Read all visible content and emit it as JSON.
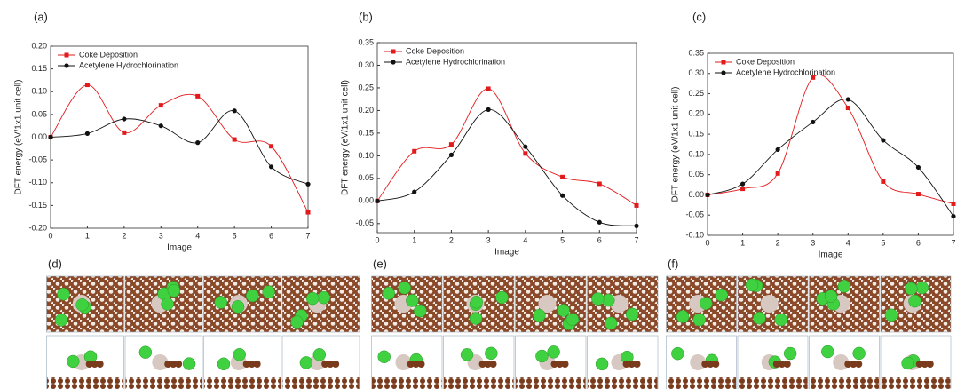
{
  "chart_data": [
    {
      "type": "line",
      "panel_label": "(a)",
      "x_label": "Image",
      "y_label": "DFT energy (eV/1x1 unit cell)",
      "x": [
        0,
        1,
        2,
        3,
        4,
        5,
        6,
        7
      ],
      "xlim": [
        0,
        7
      ],
      "xticks": [
        0,
        1,
        2,
        3,
        4,
        5,
        6,
        7
      ],
      "ylim": [
        -0.2,
        0.2
      ],
      "yticks": [
        {
          "value": -0.2,
          "label": "-0.20"
        },
        -0.15,
        {
          "value": -0.1,
          "label": "-0.10"
        },
        -0.05,
        {
          "value": 0,
          "label": "0.00"
        },
        0.05,
        {
          "value": 0.1,
          "label": "0.10"
        },
        0.15,
        {
          "value": 0.2,
          "label": "0.20"
        }
      ],
      "series": [
        {
          "name": "Coke Deposition",
          "color": "#e31a1c",
          "marker": "square",
          "values": [
            0,
            0.115,
            0.01,
            0.07,
            0.09,
            -0.005,
            -0.02,
            -0.165
          ]
        },
        {
          "name": "Acetylene Hydrochlorination",
          "color": "#111111",
          "marker": "circle",
          "values": [
            0,
            0.008,
            0.04,
            0.025,
            -0.012,
            0.058,
            -0.065,
            -0.103
          ]
        }
      ]
    },
    {
      "type": "line",
      "panel_label": "(b)",
      "x_label": "Image",
      "y_label": "DFT energy (eV/1x1 unit cell)",
      "x": [
        0,
        1,
        2,
        3,
        4,
        5,
        6,
        7
      ],
      "xlim": [
        0,
        7
      ],
      "xticks": [
        0,
        1,
        2,
        3,
        4,
        5,
        6,
        7
      ],
      "ylim": [
        -0.07,
        0.35
      ],
      "yticks": [
        -0.05,
        {
          "value": 0,
          "label": "0.00"
        },
        0.05,
        {
          "value": 0.1,
          "label": "0.10"
        },
        0.15,
        {
          "value": 0.2,
          "label": "0.20"
        },
        0.25,
        {
          "value": 0.3,
          "label": "0.30"
        },
        0.35
      ],
      "series": [
        {
          "name": "Coke Deposition",
          "color": "#e31a1c",
          "marker": "square",
          "values": [
            0,
            0.11,
            0.125,
            0.248,
            0.105,
            0.053,
            0.038,
            -0.01
          ]
        },
        {
          "name": "Acetylene Hydrochlorination",
          "color": "#111111",
          "marker": "circle",
          "values": [
            0,
            0.02,
            0.102,
            0.202,
            0.12,
            0.012,
            -0.047,
            -0.055
          ]
        }
      ]
    },
    {
      "type": "line",
      "panel_label": "(c)",
      "x_label": "Image",
      "y_label": "DFT energy (eV/1x1 unit cell)",
      "x": [
        0,
        1,
        2,
        3,
        4,
        5,
        6,
        7
      ],
      "xlim": [
        0,
        7
      ],
      "xticks": [
        0,
        1,
        2,
        3,
        4,
        5,
        6,
        7
      ],
      "ylim": [
        -0.1,
        0.35
      ],
      "yticks": [
        {
          "value": -0.1,
          "label": "-0.10"
        },
        -0.05,
        {
          "value": 0,
          "label": "0.00"
        },
        0.05,
        {
          "value": 0.1,
          "label": "0.10"
        },
        0.15,
        {
          "value": 0.2,
          "label": "0.20"
        },
        0.25,
        {
          "value": 0.3,
          "label": "0.30"
        },
        0.35
      ],
      "series": [
        {
          "name": "Coke Deposition",
          "color": "#e31a1c",
          "marker": "square",
          "values": [
            0,
            0.015,
            0.053,
            0.29,
            0.215,
            0.033,
            0.002,
            -0.022
          ]
        },
        {
          "name": "Acetylene Hydrochlorination",
          "color": "#111111",
          "marker": "circle",
          "values": [
            0,
            0.027,
            0.112,
            0.18,
            0.236,
            0.135,
            0.068,
            -0.053
          ]
        }
      ]
    }
  ],
  "image_panels": [
    {
      "label": "(d)"
    },
    {
      "label": "(e)"
    },
    {
      "label": "(f)"
    }
  ]
}
